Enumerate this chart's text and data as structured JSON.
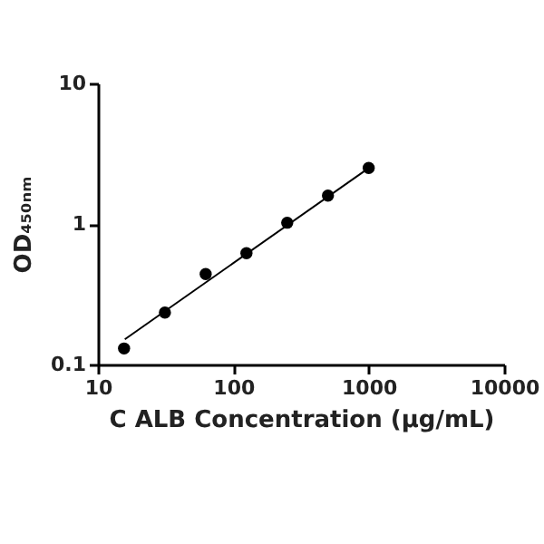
{
  "chart_data": {
    "type": "scatter",
    "xlabel": "C ALB Concentration (µg/mL)",
    "ylabel": "OD₄₅₀ₙₘ",
    "log": "xy",
    "grid": false,
    "marker": "circle",
    "x": [
      15.6,
      31.25,
      62.5,
      125,
      250,
      500,
      1000
    ],
    "series": [
      {
        "color": "#000000",
        "values": [
          0.13,
          0.234,
          0.44,
          0.62,
          1.02,
          1.59,
          2.5
        ]
      },
      {
        "type": "line",
        "color": "#000000",
        "marker": "none",
        "x": [
          15.8,
          1000
        ],
        "values": [
          0.151,
          2.5
        ]
      }
    ],
    "xlim": [
      10,
      10000
    ],
    "xticks": [
      10,
      100,
      1000,
      10000
    ],
    "ylim": [
      0.1,
      10
    ],
    "yticks": [
      0.1,
      1,
      10
    ]
  }
}
